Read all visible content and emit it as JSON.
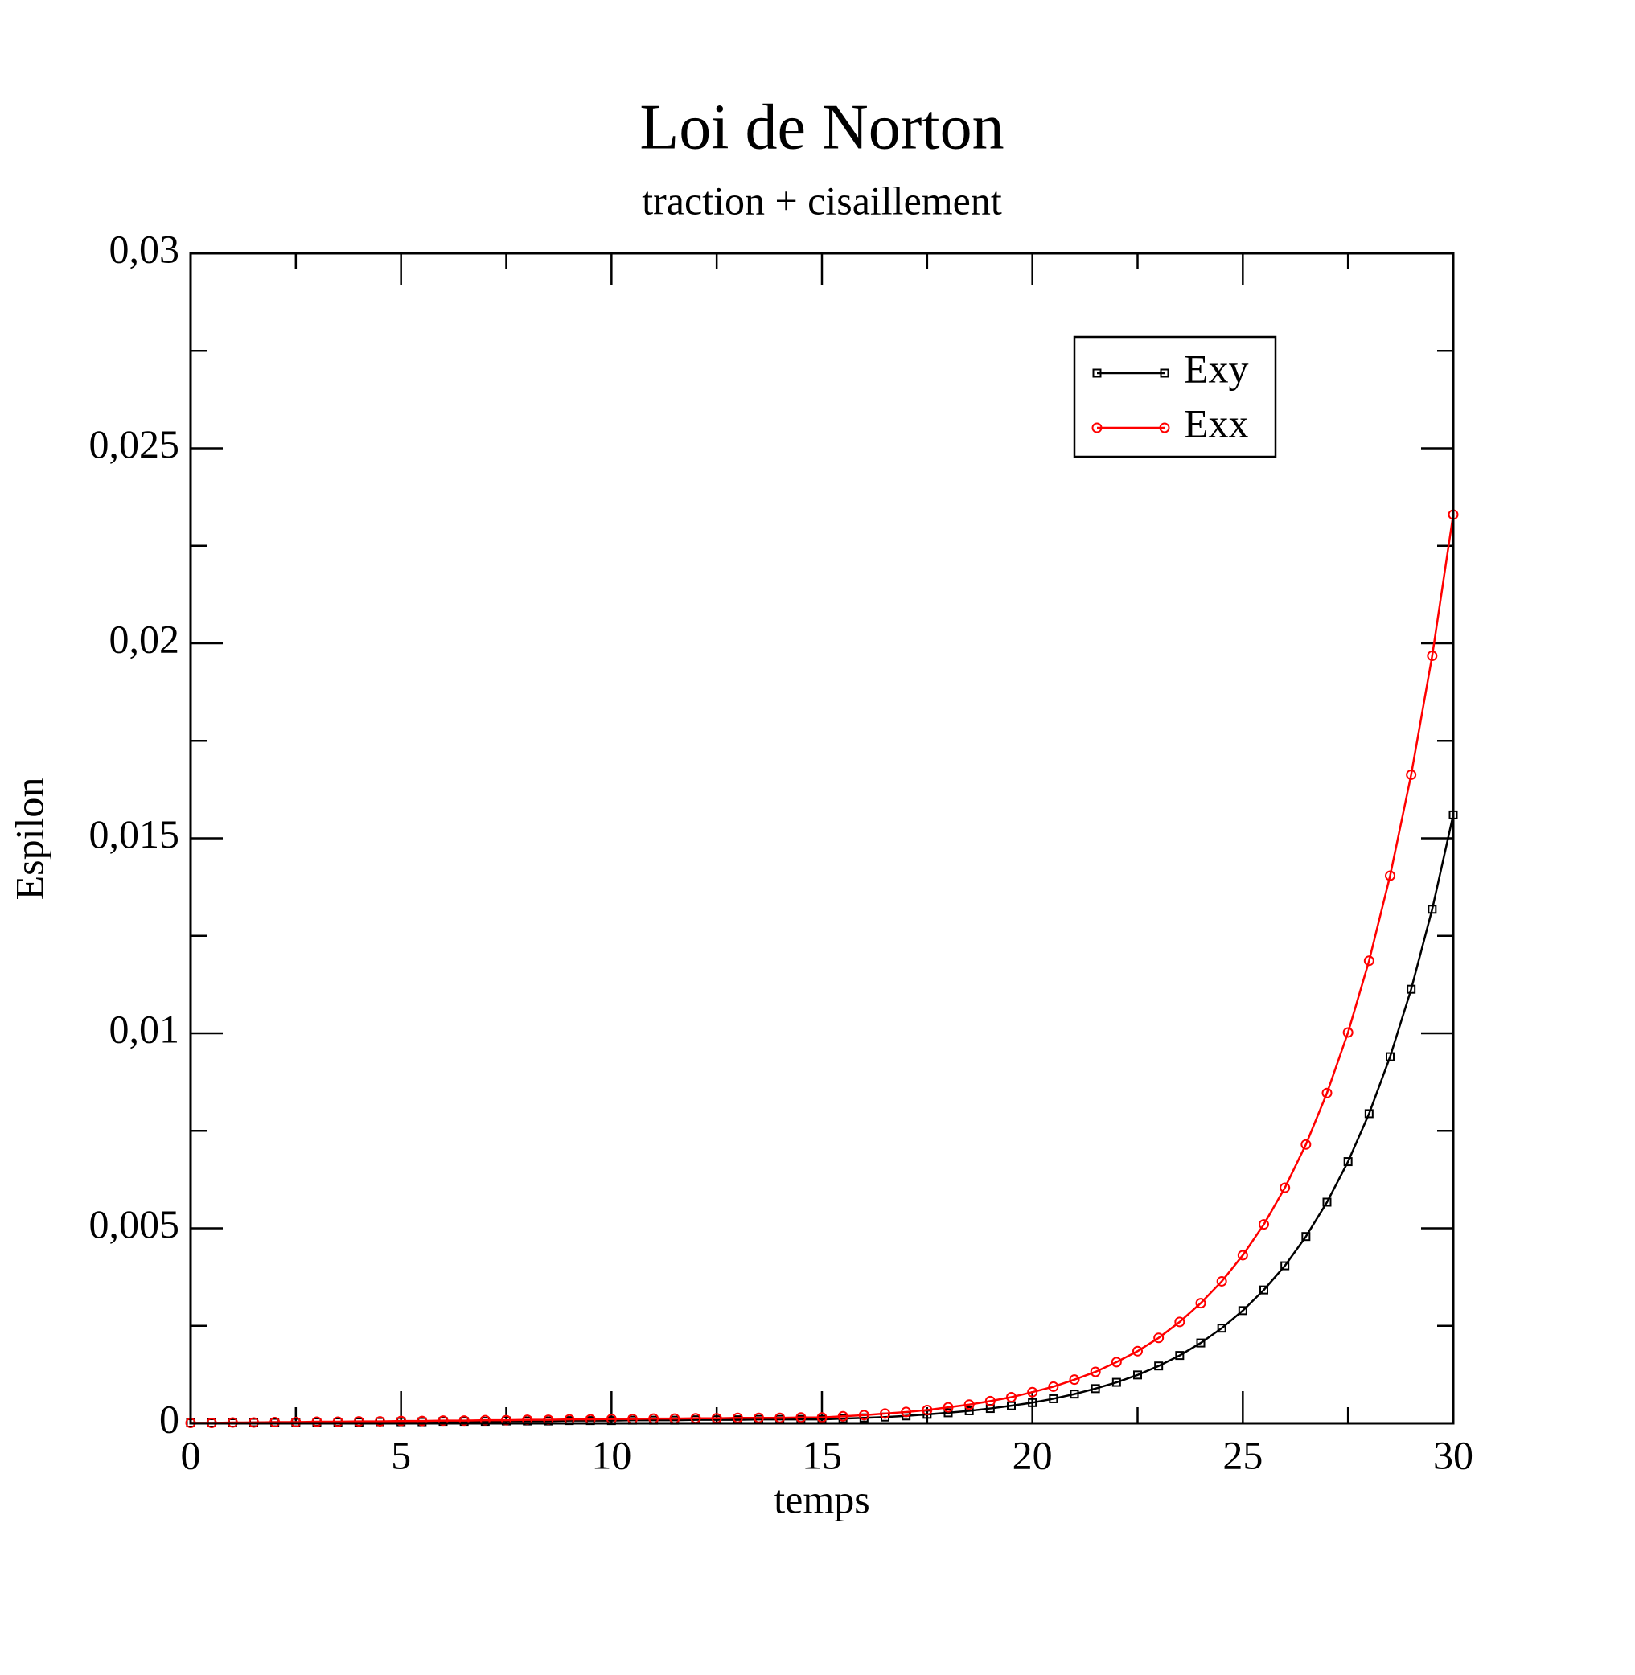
{
  "chart_data": {
    "type": "line",
    "title": "Loi de Norton",
    "subtitle": "traction + cisaillement",
    "x_label": "temps",
    "y_label": "Espilon",
    "x": [
      0,
      0.5,
      1,
      1.5,
      2,
      2.5,
      3,
      3.5,
      4,
      4.5,
      5,
      5.5,
      6,
      6.5,
      7,
      7.5,
      8,
      8.5,
      9,
      9.5,
      10,
      10.5,
      11,
      11.5,
      12,
      12.5,
      13,
      13.5,
      14,
      14.5,
      15,
      15.5,
      16,
      16.5,
      17,
      17.5,
      18,
      18.5,
      19,
      19.5,
      20,
      20.5,
      21,
      21.5,
      22,
      22.5,
      23,
      23.5,
      24,
      24.5,
      25,
      25.5,
      26,
      26.5,
      27,
      27.5,
      28,
      28.5,
      29,
      29.5,
      30
    ],
    "series": [
      {
        "name": "Exy",
        "color": "#000000",
        "marker": "square",
        "values": [
          1e-05,
          1e-05,
          1e-05,
          2e-05,
          2e-05,
          2e-05,
          3e-05,
          3e-05,
          3e-05,
          4e-05,
          4e-05,
          4e-05,
          5e-05,
          5e-05,
          5e-05,
          6e-05,
          6e-05,
          6e-05,
          7e-05,
          7e-05,
          7e-05,
          8e-05,
          8e-05,
          8e-05,
          9e-05,
          9e-05,
          9e-05,
          0.0001,
          0.0001,
          0.0001,
          0.0001,
          0.00012,
          0.00014,
          0.00016,
          0.00019,
          0.00023,
          0.00027,
          0.00032,
          0.00038,
          0.00045,
          0.00053,
          0.00063,
          0.00075,
          0.00089,
          0.00105,
          0.00124,
          0.00147,
          0.00174,
          0.00206,
          0.00244,
          0.00289,
          0.00342,
          0.00404,
          0.00479,
          0.00567,
          0.00671,
          0.00794,
          0.0094,
          0.01113,
          0.01318,
          0.0156
        ]
      },
      {
        "name": "Exx",
        "color": "#ff0000",
        "marker": "circle",
        "values": [
          1e-05,
          1e-05,
          2e-05,
          2e-05,
          3e-05,
          3e-05,
          4e-05,
          4e-05,
          5e-05,
          5e-05,
          6e-05,
          6e-05,
          7e-05,
          7e-05,
          8e-05,
          8e-05,
          9e-05,
          9e-05,
          0.0001,
          0.0001,
          0.00011,
          0.00011,
          0.00012,
          0.00012,
          0.00013,
          0.00013,
          0.00014,
          0.00014,
          0.00014,
          0.00015,
          0.00015,
          0.00018,
          0.00021,
          0.00025,
          0.00029,
          0.00034,
          0.00041,
          0.00048,
          0.00057,
          0.00067,
          0.0008,
          0.00094,
          0.00112,
          0.00132,
          0.00157,
          0.00185,
          0.00219,
          0.0026,
          0.00308,
          0.00364,
          0.00431,
          0.0051,
          0.00604,
          0.00715,
          0.00847,
          0.01002,
          0.01186,
          0.01404,
          0.01663,
          0.01968,
          0.0233
        ]
      }
    ],
    "xlim": [
      0,
      30
    ],
    "xticks": [
      0,
      5,
      10,
      15,
      20,
      25,
      30
    ],
    "ylim": [
      0,
      0.03
    ],
    "yticks": [
      0,
      {
        "value": 0.005,
        "label": "0,005"
      },
      {
        "value": 0.01,
        "label": "0,01"
      },
      {
        "value": 0.015,
        "label": "0,015"
      },
      {
        "value": 0.02,
        "label": "0,02"
      },
      {
        "value": 0.025,
        "label": "0,025"
      },
      {
        "value": 0.03,
        "label": "0,03"
      }
    ],
    "grid": false,
    "legend": "upper right"
  }
}
